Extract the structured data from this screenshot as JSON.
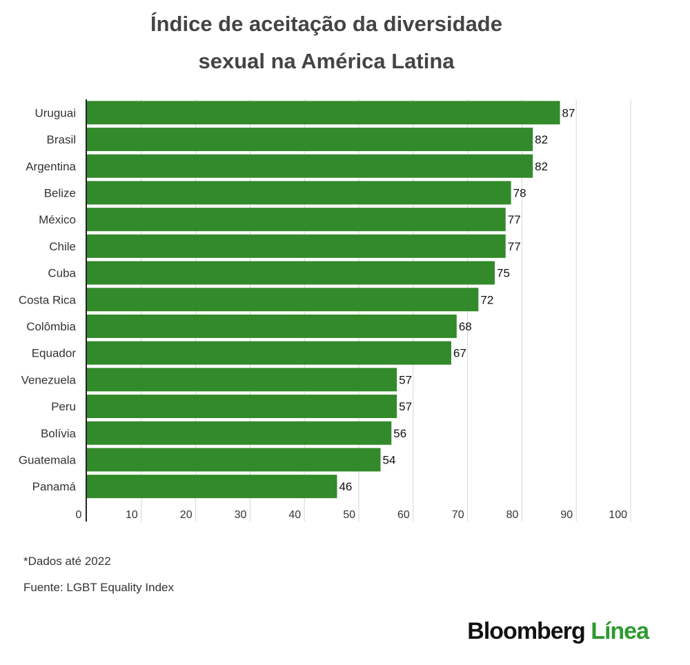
{
  "chart_data": {
    "type": "bar",
    "orientation": "horizontal",
    "title_lines": [
      "Índice de aceitação da diversidade",
      "sexual na América Latina"
    ],
    "categories": [
      "Uruguai",
      "Brasil",
      "Argentina",
      "Belize",
      "México",
      "Chile",
      "Cuba",
      "Costa Rica",
      "Colômbia",
      "Equador",
      "Venezuela",
      "Peru",
      "Bolívia",
      "Guatemala",
      "Panamá"
    ],
    "values": [
      87,
      82,
      82,
      78,
      77,
      77,
      75,
      72,
      68,
      67,
      57,
      57,
      56,
      54,
      46
    ],
    "xlim": [
      0,
      100
    ],
    "xticks": [
      0,
      10,
      20,
      30,
      40,
      50,
      60,
      70,
      80,
      90,
      100
    ],
    "grid": true,
    "bar_color": "#338a2a"
  },
  "notes": {
    "footnote": "*Dados até 2022",
    "source": "Fuente: LGBT Equality Index"
  },
  "brand": {
    "part1": "Bloomberg",
    "part2": "Línea"
  }
}
